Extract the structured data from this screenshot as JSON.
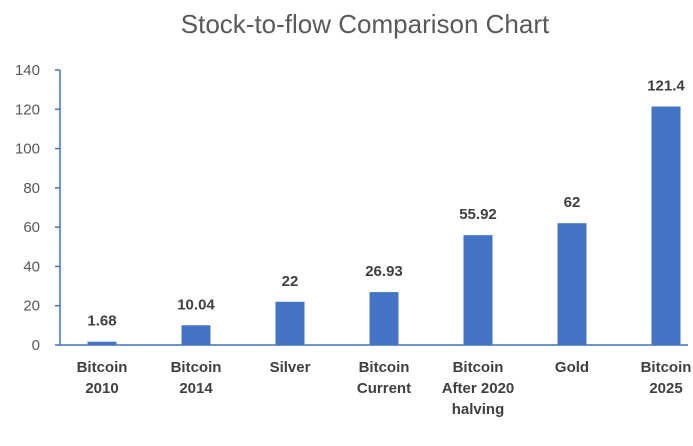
{
  "chart_data": {
    "type": "bar",
    "title": "Stock-to-flow Comparison Chart",
    "xlabel": "",
    "ylabel": "",
    "ylim": [
      0,
      140
    ],
    "yticks": [
      0,
      20,
      40,
      60,
      80,
      100,
      120,
      140
    ],
    "grid": false,
    "legend": "none",
    "bar_color": "#4472C4",
    "categories": [
      [
        "Bitcoin",
        "2010"
      ],
      [
        "Bitcoin",
        "2014"
      ],
      [
        "Silver"
      ],
      [
        "Bitcoin",
        "Current"
      ],
      [
        "Bitcoin",
        "After 2020",
        "halving"
      ],
      [
        "Gold"
      ],
      [
        "Bitcoin",
        "2025"
      ]
    ],
    "values": [
      1.68,
      10.04,
      22,
      26.93,
      55.92,
      62,
      121.4
    ],
    "data_labels": [
      "1.68",
      "10.04",
      "22",
      "26.93",
      "55.92",
      "62",
      "121.4"
    ]
  }
}
